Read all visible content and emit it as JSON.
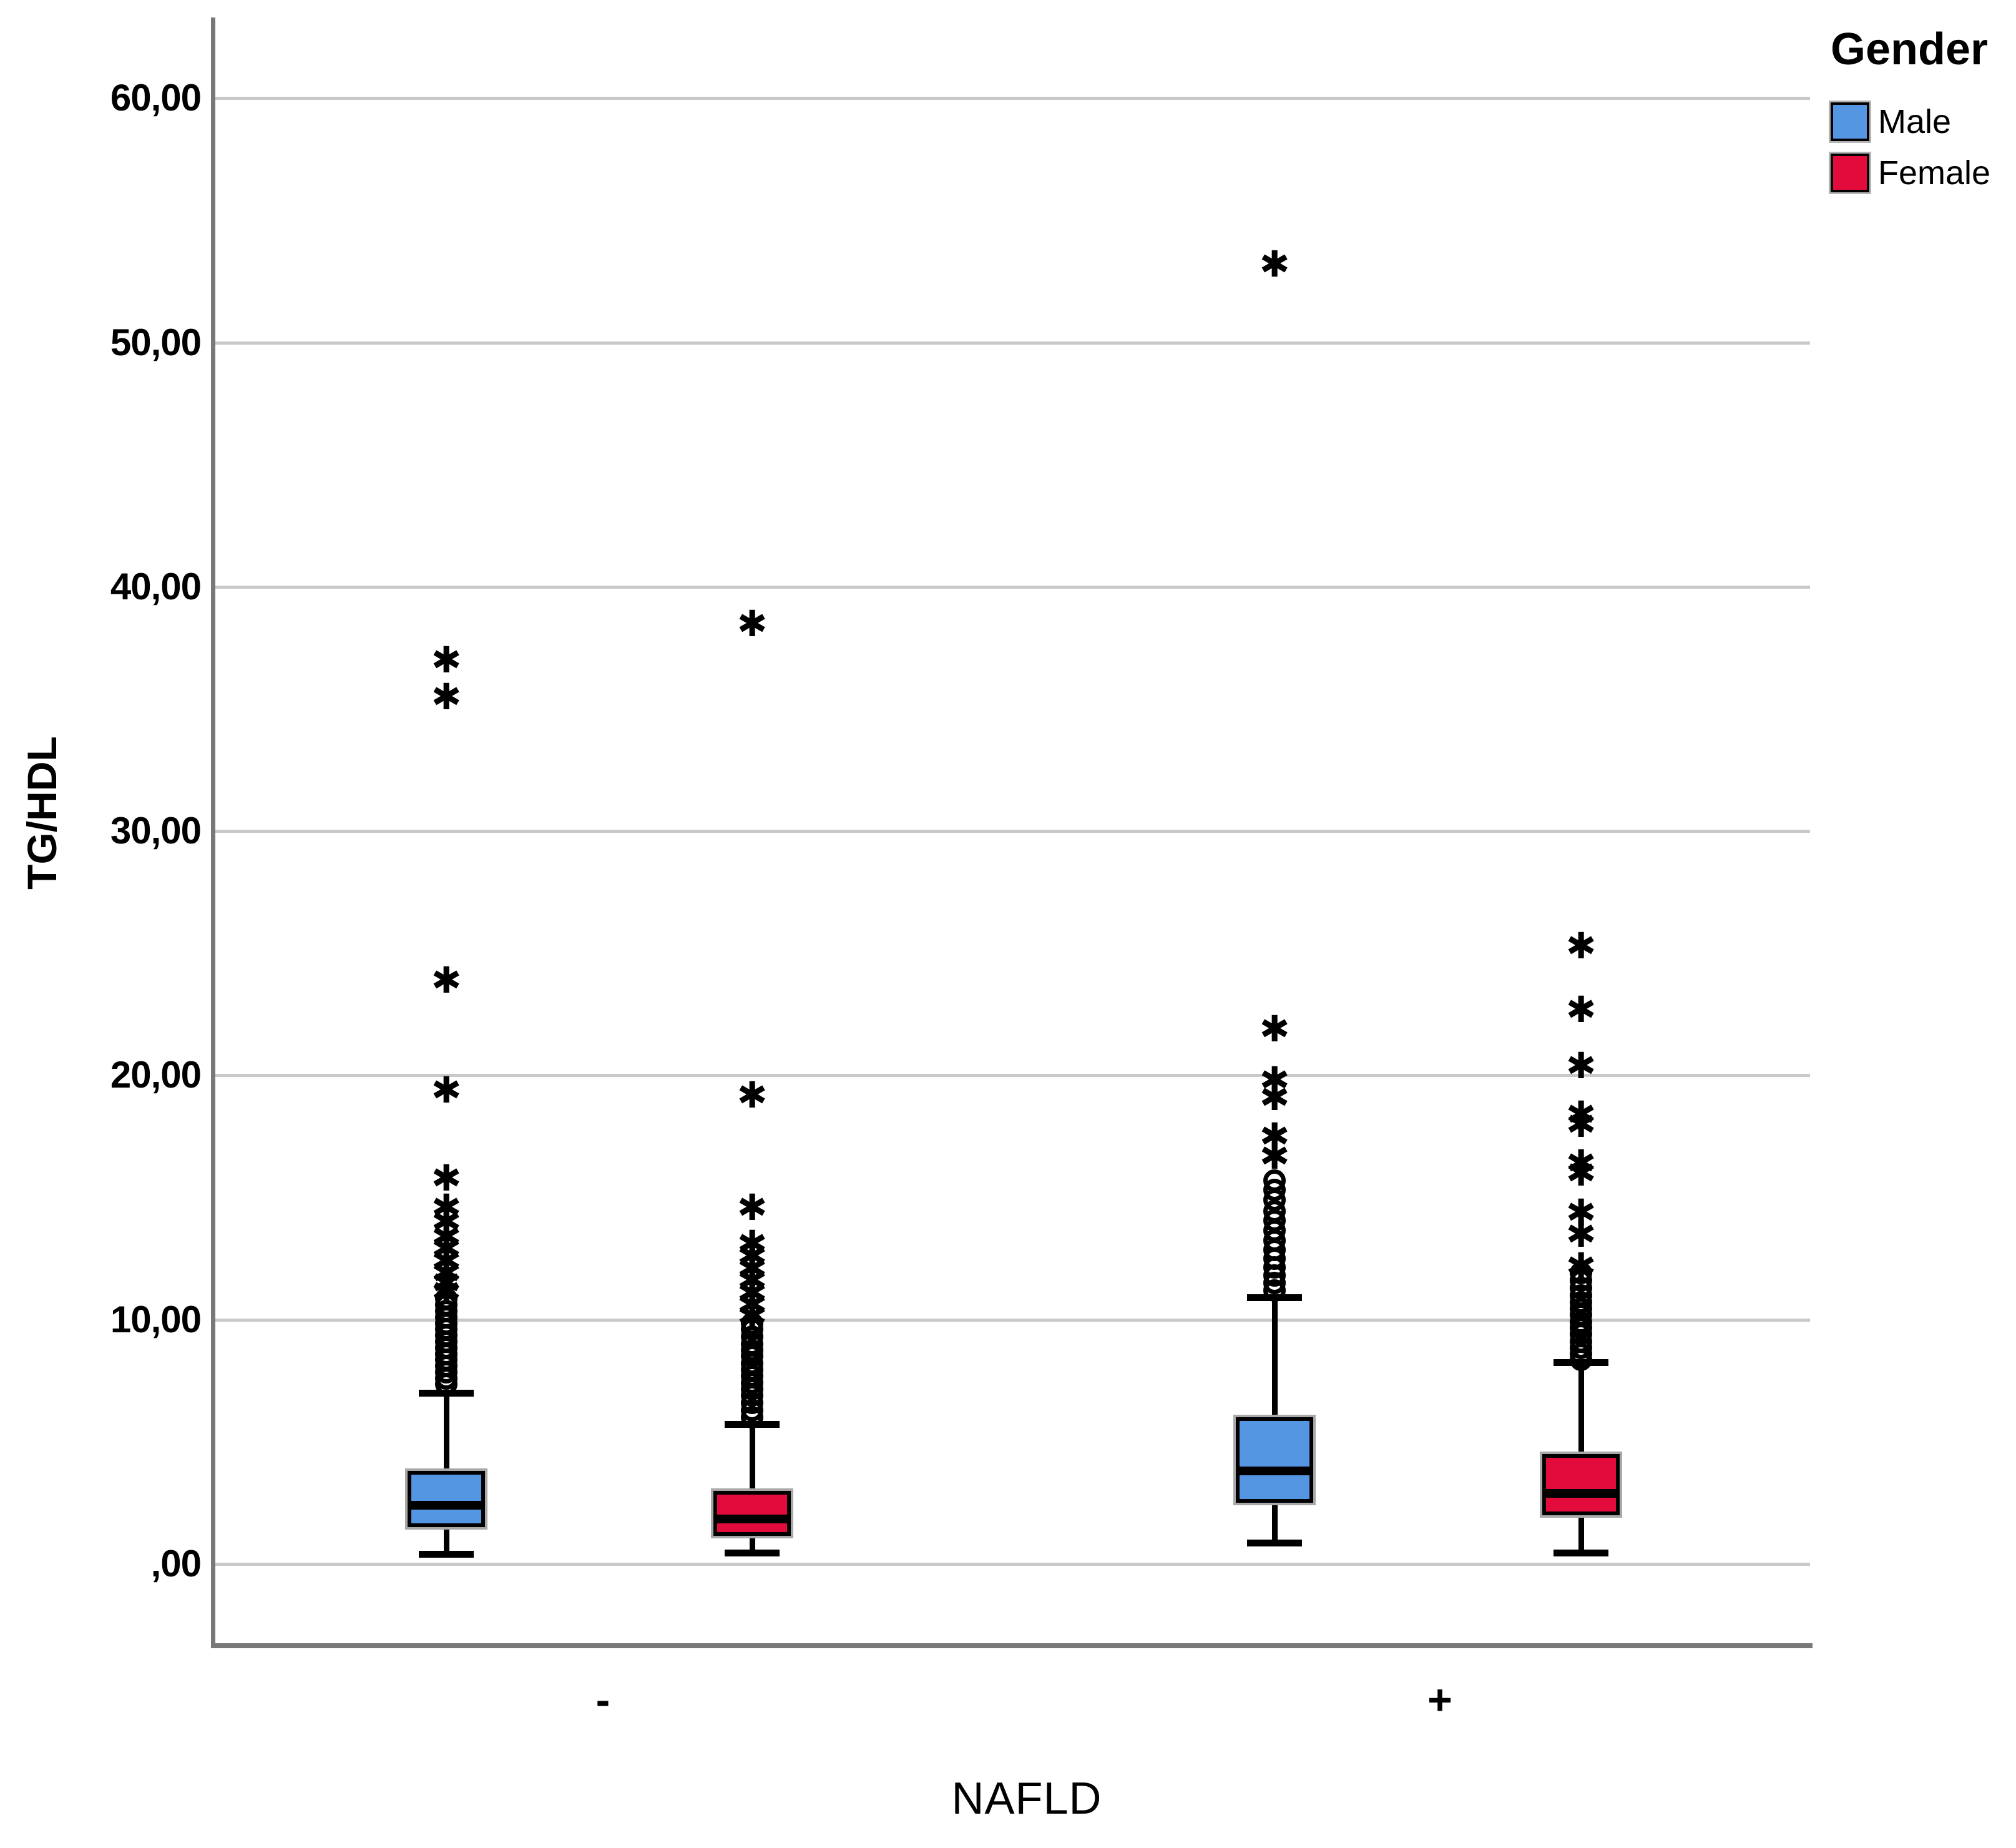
{
  "legend": {
    "title": "Gender",
    "items": [
      {
        "label": "Male",
        "color": "#5596E3"
      },
      {
        "label": "Female",
        "color": "#E30A3C"
      }
    ]
  },
  "axes": {
    "y": {
      "title": "TG/HDL",
      "ticks": [
        {
          "value": 0,
          "label": ",00"
        },
        {
          "value": 10,
          "label": "10,00"
        },
        {
          "value": 20,
          "label": "20,00"
        },
        {
          "value": 30,
          "label": "30,00"
        },
        {
          "value": 40,
          "label": "40,00"
        },
        {
          "value": 50,
          "label": "50,00"
        },
        {
          "value": 60,
          "label": "60,00"
        }
      ]
    },
    "x": {
      "title": "NAFLD",
      "categories": [
        "-",
        "+"
      ]
    }
  },
  "chart_data": {
    "type": "boxplot",
    "title": "",
    "xlabel": "NAFLD",
    "ylabel": "TG/HDL",
    "ylim": [
      -3.3,
      63.5
    ],
    "grid": "horizontal",
    "legend_position": "top-right",
    "categories": [
      "-",
      "+"
    ],
    "series_names": [
      "Male",
      "Female"
    ],
    "groups": [
      {
        "category": "-",
        "series": "Male",
        "color": "#5596E3",
        "whisker_low": 0.4,
        "q1": 1.5,
        "median": 2.4,
        "q3": 3.8,
        "whisker_high": 7.0,
        "outliers_star": [
          37.0,
          35.5,
          23.9,
          19.4,
          15.8,
          14.6,
          14.0,
          13.4,
          12.9,
          12.4,
          11.9,
          11.5,
          11.15
        ],
        "outliers_circle": [
          10.85,
          10.6,
          10.35,
          10.1,
          9.85,
          9.6,
          9.35,
          9.1,
          8.85,
          8.6,
          8.35,
          8.1,
          7.85,
          7.6,
          7.35
        ]
      },
      {
        "category": "-",
        "series": "Female",
        "color": "#E30A3C",
        "whisker_low": 0.45,
        "q1": 1.15,
        "median": 1.85,
        "q3": 3.0,
        "whisker_high": 5.7,
        "outliers_star": [
          38.5,
          19.2,
          14.6,
          13.1,
          12.6,
          12.1,
          11.6,
          11.1,
          10.6,
          10.15
        ],
        "outliers_circle": [
          9.85,
          9.6,
          9.3,
          9.0,
          8.75,
          8.5,
          8.2,
          7.95,
          7.7,
          7.4,
          7.15,
          6.9,
          6.6,
          6.3,
          6.0
        ]
      },
      {
        "category": "+",
        "series": "Male",
        "color": "#5596E3",
        "whisker_low": 0.85,
        "q1": 2.5,
        "median": 3.8,
        "q3": 6.0,
        "whisker_high": 10.9,
        "outliers_star": [
          53.2,
          21.9,
          19.8,
          19.1,
          17.5,
          16.7
        ],
        "outliers_circle": [
          15.7,
          15.3,
          14.9,
          14.45,
          14.05,
          13.65,
          13.25,
          12.85,
          12.5,
          12.15,
          11.8,
          11.5,
          11.2
        ]
      },
      {
        "category": "+",
        "series": "Female",
        "color": "#E30A3C",
        "whisker_low": 0.45,
        "q1": 2.0,
        "median": 2.9,
        "q3": 4.5,
        "whisker_high": 8.25,
        "outliers_star": [
          25.3,
          22.7,
          20.4,
          18.4,
          18.0,
          16.4,
          16.0,
          14.4,
          13.5,
          12.2
        ],
        "outliers_circle": [
          11.9,
          11.6,
          11.3,
          11.0,
          10.7,
          10.45,
          10.2,
          9.9,
          9.65,
          9.4,
          9.1,
          8.85,
          8.6,
          8.35
        ]
      }
    ]
  }
}
